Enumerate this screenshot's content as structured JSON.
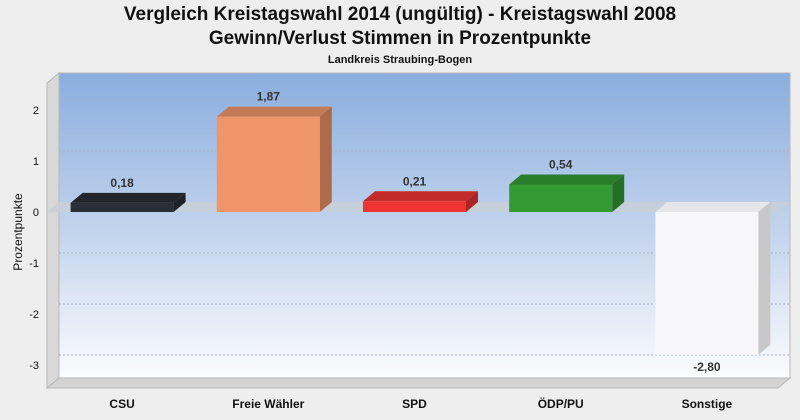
{
  "chart_data": {
    "type": "bar",
    "title": "Vergleich Kreistagswahl 2014 (ungültig) - Kreistagswahl 2008",
    "subtitle": "Gewinn/Verlust Stimmen in Prozentpunkte",
    "note": "Landkreis Straubing-Bogen",
    "xlabel": "",
    "ylabel": "Prozentpunkte",
    "ylim": [
      -3.3,
      2.6
    ],
    "yticks": [
      "2",
      "1",
      "0",
      "-1",
      "-2",
      "-3"
    ],
    "categories": [
      "CSU",
      "Freie Wähler",
      "SPD",
      "ÖDP/PU",
      "Sonstige"
    ],
    "values": [
      0.18,
      1.87,
      0.21,
      0.54,
      -2.8
    ],
    "value_labels": [
      "0,18",
      "1,87",
      "0,21",
      "0,54",
      "-2,80"
    ],
    "colors": [
      "#2a2e36",
      "#f0956a",
      "#ee3333",
      "#339933",
      "#f8f8fb"
    ],
    "grid": true,
    "legend": "none",
    "style": "3d"
  }
}
